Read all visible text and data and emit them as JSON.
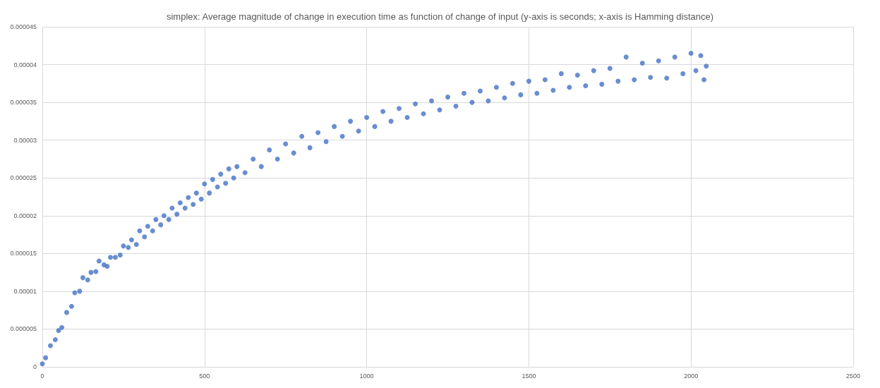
{
  "chart_data": {
    "type": "scatter",
    "title": "simplex: Average magnitude of change in execution time as function of change of input (y-axis is seconds; x-axis is Hamming distance)",
    "x": [
      0,
      10,
      25,
      40,
      50,
      60,
      75,
      90,
      100,
      115,
      125,
      140,
      150,
      165,
      175,
      190,
      200,
      210,
      225,
      240,
      250,
      265,
      275,
      290,
      300,
      315,
      325,
      340,
      350,
      365,
      375,
      390,
      400,
      415,
      425,
      440,
      450,
      465,
      475,
      490,
      500,
      515,
      525,
      540,
      550,
      565,
      575,
      590,
      600,
      625,
      650,
      675,
      700,
      725,
      750,
      775,
      800,
      825,
      850,
      875,
      900,
      925,
      950,
      975,
      1000,
      1025,
      1050,
      1075,
      1100,
      1125,
      1150,
      1175,
      1200,
      1225,
      1250,
      1275,
      1300,
      1325,
      1350,
      1375,
      1400,
      1425,
      1450,
      1475,
      1500,
      1525,
      1550,
      1575,
      1600,
      1625,
      1650,
      1675,
      1700,
      1725,
      1750,
      1775,
      1800,
      1825,
      1850,
      1875,
      1900,
      1925,
      1950,
      1975,
      2000,
      2015,
      2030,
      2040,
      2047
    ],
    "series": [
      {
        "color": "#4472c4",
        "values": [
          4e-07,
          1.2e-06,
          2.8e-06,
          3.6e-06,
          4.8e-06,
          5.2e-06,
          7.2e-06,
          8e-06,
          9.8e-06,
          1e-05,
          1.18e-05,
          1.15e-05,
          1.25e-05,
          1.26e-05,
          1.4e-05,
          1.35e-05,
          1.33e-05,
          1.45e-05,
          1.45e-05,
          1.48e-05,
          1.6e-05,
          1.58e-05,
          1.68e-05,
          1.62e-05,
          1.8e-05,
          1.72e-05,
          1.86e-05,
          1.8e-05,
          1.95e-05,
          1.88e-05,
          2e-05,
          1.95e-05,
          2.1e-05,
          2.02e-05,
          2.17e-05,
          2.1e-05,
          2.24e-05,
          2.15e-05,
          2.3e-05,
          2.22e-05,
          2.42e-05,
          2.3e-05,
          2.48e-05,
          2.38e-05,
          2.55e-05,
          2.43e-05,
          2.62e-05,
          2.5e-05,
          2.65e-05,
          2.57e-05,
          2.75e-05,
          2.65e-05,
          2.87e-05,
          2.75e-05,
          2.95e-05,
          2.83e-05,
          3.05e-05,
          2.9e-05,
          3.1e-05,
          2.98e-05,
          3.18e-05,
          3.05e-05,
          3.25e-05,
          3.12e-05,
          3.3e-05,
          3.18e-05,
          3.38e-05,
          3.25e-05,
          3.42e-05,
          3.3e-05,
          3.48e-05,
          3.35e-05,
          3.52e-05,
          3.4e-05,
          3.57e-05,
          3.45e-05,
          3.62e-05,
          3.5e-05,
          3.65e-05,
          3.52e-05,
          3.7e-05,
          3.56e-05,
          3.75e-05,
          3.6e-05,
          3.78e-05,
          3.62e-05,
          3.8e-05,
          3.66e-05,
          3.88e-05,
          3.7e-05,
          3.86e-05,
          3.72e-05,
          3.92e-05,
          3.74e-05,
          3.95e-05,
          3.78e-05,
          4.1e-05,
          3.8e-05,
          4.02e-05,
          3.83e-05,
          4.05e-05,
          3.82e-05,
          4.1e-05,
          3.88e-05,
          4.15e-05,
          3.92e-05,
          4.12e-05,
          3.8e-05,
          3.98e-05
        ]
      }
    ],
    "xlim": [
      0,
      2500
    ],
    "xticks": [
      0,
      500,
      1000,
      1500,
      2000,
      2500
    ],
    "ylim": [
      0,
      4.5e-05
    ],
    "yticks": [
      0,
      {
        "value": 5e-06,
        "label": "0.000005"
      },
      {
        "value": 1e-05,
        "label": "0.00001"
      },
      {
        "value": 1.5e-05,
        "label": "0.000015"
      },
      {
        "value": 2e-05,
        "label": "0.00002"
      },
      {
        "value": 2.5e-05,
        "label": "0.000025"
      },
      {
        "value": 3e-05,
        "label": "0.00003"
      },
      {
        "value": 3.5e-05,
        "label": "0.000035"
      },
      {
        "value": 4e-05,
        "label": "0.00004"
      },
      {
        "value": 4.5e-05,
        "label": "0.000045"
      }
    ],
    "grid": true,
    "marker": "circle"
  }
}
